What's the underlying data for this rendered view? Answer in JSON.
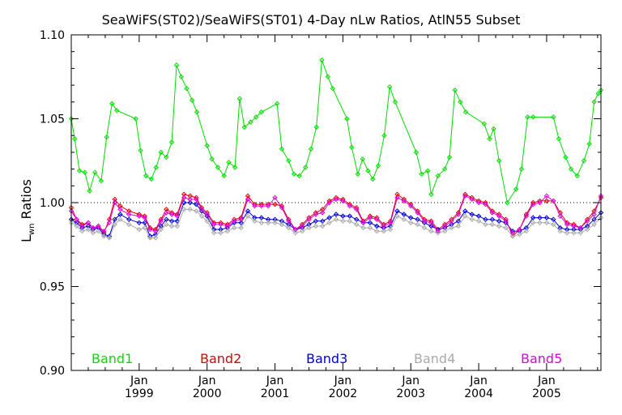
{
  "chart_data": {
    "type": "line",
    "title": "SeaWiFS(ST02)/SeaWiFS(ST01) 4-Day nLw Ratios, AtlN55 Subset",
    "xlabel": "",
    "ylabel": {
      "main": "L",
      "sub": "wn",
      "rest": " Ratios"
    },
    "xlim": [
      1998.0,
      2005.8
    ],
    "ylim": [
      0.9,
      1.1
    ],
    "yticks": [
      "0.90",
      "0.95",
      "1.00",
      "1.05",
      "1.10"
    ],
    "ytick_values": [
      0.9,
      0.95,
      1.0,
      1.05,
      1.1
    ],
    "xticks": [
      {
        "top": "Jan",
        "bottom": "1999",
        "value": 1999.0
      },
      {
        "top": "Jan",
        "bottom": "2000",
        "value": 2000.0
      },
      {
        "top": "Jan",
        "bottom": "2001",
        "value": 2001.0
      },
      {
        "top": "Jan",
        "bottom": "2002",
        "value": 2002.0
      },
      {
        "top": "Jan",
        "bottom": "2003",
        "value": 2003.0
      },
      {
        "top": "Jan",
        "bottom": "2004",
        "value": 2004.0
      },
      {
        "top": "Jan",
        "bottom": "2005",
        "value": 2005.0
      }
    ],
    "reference_line": 1.0,
    "colors": {
      "Band1": "#00dd00",
      "Band2": "#dd0000",
      "Band3": "#0000cc",
      "Band4": "#aaaaaa",
      "Band5": "#dd00dd"
    },
    "legend": [
      "Band1",
      "Band2",
      "Band3",
      "Band4",
      "Band5"
    ],
    "series": [
      {
        "name": "Band1",
        "x": [
          1998.0,
          1998.05,
          1998.12,
          1998.2,
          1998.27,
          1998.35,
          1998.44,
          1998.52,
          1998.6,
          1998.67,
          1998.95,
          1999.02,
          1999.1,
          1999.18,
          1999.25,
          1999.32,
          1999.4,
          1999.48,
          1999.55,
          1999.62,
          1999.7,
          1999.78,
          1999.85,
          2000.0,
          2000.07,
          2000.16,
          2000.25,
          2000.32,
          2000.41,
          2000.48,
          2000.55,
          2000.64,
          2000.72,
          2000.8,
          2001.03,
          2001.1,
          2001.2,
          2001.28,
          2001.36,
          2001.45,
          2001.53,
          2001.61,
          2001.69,
          2001.78,
          2001.85,
          2002.06,
          2002.13,
          2002.22,
          2002.29,
          2002.37,
          2002.44,
          2002.52,
          2002.61,
          2002.69,
          2002.77,
          2003.08,
          2003.16,
          2003.25,
          2003.3,
          2003.4,
          2003.5,
          2003.57,
          2003.65,
          2003.73,
          2003.81,
          2004.08,
          2004.16,
          2004.22,
          2004.3,
          2004.42,
          2004.55,
          2004.63,
          2004.72,
          2004.8,
          2005.1,
          2005.18,
          2005.28,
          2005.36,
          2005.45,
          2005.55,
          2005.63,
          2005.7,
          2005.76,
          2005.8
        ],
        "y": [
          1.05,
          1.038,
          1.019,
          1.018,
          1.007,
          1.018,
          1.013,
          1.039,
          1.059,
          1.055,
          1.05,
          1.031,
          1.016,
          1.014,
          1.021,
          1.03,
          1.027,
          1.036,
          1.082,
          1.075,
          1.068,
          1.061,
          1.054,
          1.034,
          1.026,
          1.021,
          1.016,
          1.024,
          1.021,
          1.062,
          1.045,
          1.048,
          1.051,
          1.054,
          1.059,
          1.032,
          1.025,
          1.017,
          1.016,
          1.021,
          1.032,
          1.045,
          1.085,
          1.075,
          1.068,
          1.05,
          1.033,
          1.017,
          1.026,
          1.019,
          1.014,
          1.022,
          1.04,
          1.069,
          1.06,
          1.03,
          1.017,
          1.019,
          1.005,
          1.016,
          1.02,
          1.027,
          1.067,
          1.06,
          1.054,
          1.047,
          1.038,
          1.044,
          1.025,
          1.0,
          1.008,
          1.02,
          1.051,
          1.051,
          1.051,
          1.038,
          1.027,
          1.02,
          1.016,
          1.025,
          1.035,
          1.06,
          1.065,
          1.067
        ]
      },
      {
        "name": "Band2",
        "x": [
          1998.0,
          1998.08,
          1998.16,
          1998.25,
          1998.32,
          1998.4,
          1998.48,
          1998.56,
          1998.64,
          1998.72,
          1998.85,
          1999.0,
          1999.08,
          1999.16,
          1999.24,
          1999.32,
          1999.4,
          1999.48,
          1999.56,
          1999.66,
          1999.75,
          1999.84,
          1999.92,
          2000.0,
          2000.1,
          2000.2,
          2000.3,
          2000.4,
          2000.5,
          2000.6,
          2000.7,
          2000.8,
          2000.9,
          2001.0,
          2001.1,
          2001.2,
          2001.3,
          2001.4,
          2001.5,
          2001.6,
          2001.7,
          2001.8,
          2001.9,
          2002.0,
          2002.1,
          2002.2,
          2002.3,
          2002.4,
          2002.5,
          2002.6,
          2002.7,
          2002.8,
          2002.9,
          2003.0,
          2003.1,
          2003.2,
          2003.3,
          2003.4,
          2003.5,
          2003.6,
          2003.7,
          2003.8,
          2003.9,
          2004.0,
          2004.1,
          2004.2,
          2004.3,
          2004.4,
          2004.5,
          2004.6,
          2004.7,
          2004.8,
          2004.9,
          2005.0,
          2005.1,
          2005.2,
          2005.3,
          2005.4,
          2005.5,
          2005.6,
          2005.7,
          2005.8
        ],
        "y": [
          0.997,
          0.99,
          0.987,
          0.988,
          0.985,
          0.986,
          0.982,
          0.99,
          1.002,
          0.998,
          0.995,
          0.993,
          0.992,
          0.985,
          0.984,
          0.99,
          0.996,
          0.994,
          0.993,
          1.005,
          1.004,
          1.003,
          0.997,
          0.994,
          0.988,
          0.988,
          0.987,
          0.99,
          0.991,
          1.004,
          0.999,
          0.999,
          0.999,
          0.999,
          0.998,
          0.99,
          0.984,
          0.987,
          0.991,
          0.994,
          0.996,
          1.001,
          1.003,
          1.002,
          0.999,
          0.997,
          0.989,
          0.992,
          0.991,
          0.987,
          0.989,
          1.005,
          1.002,
          0.999,
          0.995,
          0.99,
          0.989,
          0.984,
          0.987,
          0.99,
          0.994,
          1.005,
          1.003,
          1.001,
          1.0,
          0.995,
          0.993,
          0.99,
          0.98,
          0.984,
          0.993,
          1.0,
          1.001,
          1.001,
          1.001,
          0.994,
          0.988,
          0.987,
          0.985,
          0.99,
          0.995,
          1.003
        ]
      },
      {
        "name": "Band3",
        "x": [
          1998.0,
          1998.08,
          1998.16,
          1998.25,
          1998.32,
          1998.4,
          1998.48,
          1998.56,
          1998.64,
          1998.72,
          1998.85,
          1999.0,
          1999.08,
          1999.16,
          1999.24,
          1999.32,
          1999.4,
          1999.48,
          1999.56,
          1999.66,
          1999.75,
          1999.84,
          1999.92,
          2000.0,
          2000.1,
          2000.2,
          2000.3,
          2000.4,
          2000.5,
          2000.6,
          2000.7,
          2000.8,
          2000.9,
          2001.0,
          2001.1,
          2001.2,
          2001.3,
          2001.4,
          2001.5,
          2001.6,
          2001.7,
          2001.8,
          2001.9,
          2002.0,
          2002.1,
          2002.2,
          2002.3,
          2002.4,
          2002.5,
          2002.6,
          2002.7,
          2002.8,
          2002.9,
          2003.0,
          2003.1,
          2003.2,
          2003.3,
          2003.4,
          2003.5,
          2003.6,
          2003.7,
          2003.8,
          2003.9,
          2004.0,
          2004.1,
          2004.2,
          2004.3,
          2004.4,
          2004.5,
          2004.6,
          2004.7,
          2004.8,
          2004.9,
          2005.0,
          2005.1,
          2005.2,
          2005.3,
          2005.4,
          2005.5,
          2005.6,
          2005.7,
          2005.8
        ],
        "y": [
          0.99,
          0.988,
          0.985,
          0.986,
          0.984,
          0.985,
          0.981,
          0.98,
          0.99,
          0.993,
          0.99,
          0.988,
          0.988,
          0.98,
          0.981,
          0.986,
          0.99,
          0.989,
          0.989,
          1.0,
          1.0,
          0.999,
          0.995,
          0.992,
          0.984,
          0.984,
          0.985,
          0.988,
          0.988,
          0.995,
          0.991,
          0.991,
          0.99,
          0.99,
          0.989,
          0.987,
          0.984,
          0.985,
          0.987,
          0.989,
          0.989,
          0.991,
          0.993,
          0.992,
          0.992,
          0.99,
          0.988,
          0.988,
          0.986,
          0.985,
          0.986,
          0.995,
          0.993,
          0.991,
          0.99,
          0.988,
          0.986,
          0.984,
          0.985,
          0.987,
          0.989,
          0.995,
          0.993,
          0.992,
          0.99,
          0.99,
          0.989,
          0.988,
          0.983,
          0.983,
          0.985,
          0.991,
          0.991,
          0.991,
          0.99,
          0.985,
          0.984,
          0.984,
          0.984,
          0.986,
          0.99,
          0.994
        ]
      },
      {
        "name": "Band4",
        "x": [
          1998.0,
          1998.08,
          1998.16,
          1998.25,
          1998.32,
          1998.4,
          1998.48,
          1998.56,
          1998.64,
          1998.72,
          1998.85,
          1999.0,
          1999.08,
          1999.16,
          1999.24,
          1999.32,
          1999.4,
          1999.48,
          1999.56,
          1999.66,
          1999.75,
          1999.84,
          1999.92,
          2000.0,
          2000.1,
          2000.2,
          2000.3,
          2000.4,
          2000.5,
          2000.6,
          2000.7,
          2000.8,
          2000.9,
          2001.0,
          2001.1,
          2001.2,
          2001.3,
          2001.4,
          2001.5,
          2001.6,
          2001.7,
          2001.8,
          2001.9,
          2002.0,
          2002.1,
          2002.2,
          2002.3,
          2002.4,
          2002.5,
          2002.6,
          2002.7,
          2002.8,
          2002.9,
          2003.0,
          2003.1,
          2003.2,
          2003.3,
          2003.4,
          2003.5,
          2003.6,
          2003.7,
          2003.8,
          2003.9,
          2004.0,
          2004.1,
          2004.2,
          2004.3,
          2004.4,
          2004.5,
          2004.6,
          2004.7,
          2004.8,
          2004.9,
          2005.0,
          2005.1,
          2005.2,
          2005.3,
          2005.4,
          2005.5,
          2005.6,
          2005.7,
          2005.8
        ],
        "y": [
          0.988,
          0.986,
          0.983,
          0.984,
          0.982,
          0.983,
          0.98,
          0.979,
          0.987,
          0.99,
          0.987,
          0.984,
          0.985,
          0.979,
          0.979,
          0.984,
          0.987,
          0.986,
          0.986,
          0.996,
          0.996,
          0.995,
          0.992,
          0.989,
          0.982,
          0.982,
          0.983,
          0.985,
          0.985,
          0.992,
          0.989,
          0.988,
          0.988,
          0.988,
          0.987,
          0.985,
          0.982,
          0.983,
          0.985,
          0.986,
          0.986,
          0.988,
          0.99,
          0.989,
          0.989,
          0.987,
          0.985,
          0.985,
          0.983,
          0.983,
          0.984,
          0.992,
          0.99,
          0.988,
          0.987,
          0.985,
          0.983,
          0.982,
          0.983,
          0.985,
          0.986,
          0.992,
          0.99,
          0.989,
          0.987,
          0.987,
          0.986,
          0.985,
          0.98,
          0.981,
          0.983,
          0.988,
          0.988,
          0.988,
          0.987,
          0.983,
          0.982,
          0.982,
          0.982,
          0.984,
          0.987,
          0.991
        ]
      },
      {
        "name": "Band5",
        "x": [
          1998.0,
          1998.08,
          1998.16,
          1998.25,
          1998.32,
          1998.4,
          1998.48,
          1998.56,
          1998.64,
          1998.72,
          1998.85,
          1999.0,
          1999.08,
          1999.16,
          1999.24,
          1999.32,
          1999.4,
          1999.48,
          1999.56,
          1999.66,
          1999.75,
          1999.84,
          1999.92,
          2000.0,
          2000.1,
          2000.2,
          2000.3,
          2000.4,
          2000.5,
          2000.6,
          2000.7,
          2000.8,
          2000.9,
          2001.0,
          2001.1,
          2001.2,
          2001.3,
          2001.4,
          2001.5,
          2001.6,
          2001.7,
          2001.8,
          2001.9,
          2002.0,
          2002.1,
          2002.2,
          2002.3,
          2002.4,
          2002.5,
          2002.6,
          2002.7,
          2002.8,
          2002.9,
          2003.0,
          2003.1,
          2003.2,
          2003.3,
          2003.4,
          2003.5,
          2003.6,
          2003.7,
          2003.8,
          2003.9,
          2004.0,
          2004.1,
          2004.2,
          2004.3,
          2004.4,
          2004.5,
          2004.6,
          2004.7,
          2004.8,
          2004.9,
          2005.0,
          2005.1,
          2005.2,
          2005.3,
          2005.4,
          2005.5,
          2005.6,
          2005.7,
          2005.8
        ],
        "y": [
          0.995,
          0.99,
          0.986,
          0.988,
          0.985,
          0.986,
          0.983,
          0.988,
          1.0,
          0.996,
          0.993,
          0.992,
          0.991,
          0.984,
          0.983,
          0.989,
          0.994,
          0.993,
          0.992,
          1.003,
          1.002,
          1.002,
          0.996,
          0.993,
          0.987,
          0.987,
          0.986,
          0.989,
          0.99,
          1.002,
          0.998,
          0.998,
          0.998,
          1.003,
          0.997,
          0.989,
          0.984,
          0.986,
          0.99,
          0.993,
          0.994,
          1.0,
          1.002,
          1.001,
          0.998,
          0.996,
          0.988,
          0.991,
          0.99,
          0.986,
          0.988,
          1.003,
          1.001,
          0.998,
          0.994,
          0.989,
          0.988,
          0.983,
          0.986,
          0.989,
          0.993,
          1.004,
          1.002,
          1.0,
          0.999,
          0.994,
          0.992,
          0.989,
          0.982,
          0.984,
          0.992,
          0.999,
          1.0,
          1.004,
          1.001,
          0.992,
          0.987,
          0.986,
          0.985,
          0.989,
          0.993,
          1.004
        ]
      }
    ]
  }
}
